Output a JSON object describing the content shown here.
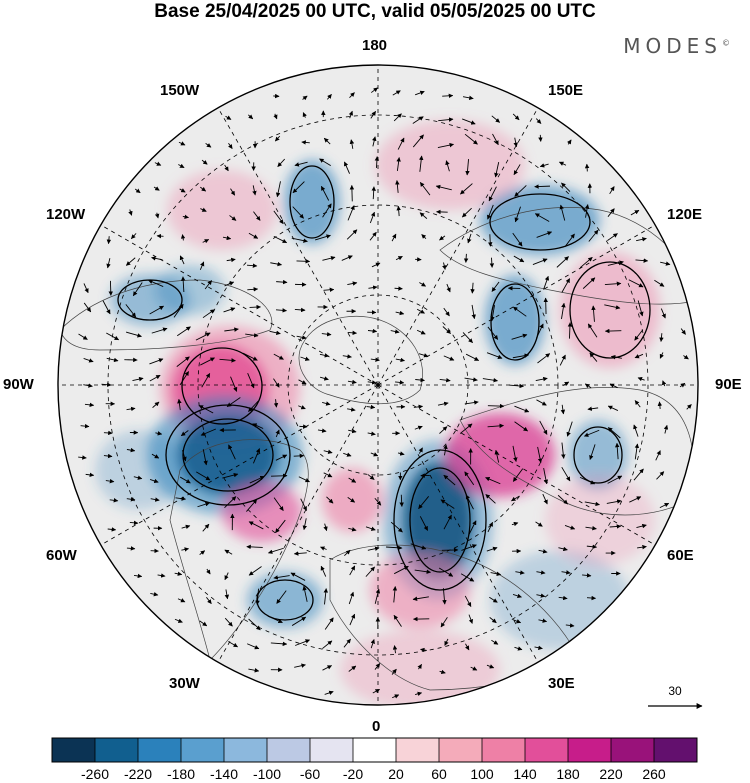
{
  "title": "Base 25/04/2025 00 UTC, valid 05/05/2025 00 UTC",
  "brand": "MODES",
  "brand_mark": "©",
  "meridian_labels": {
    "m180": "180",
    "m150e": "150E",
    "m120e": "120E",
    "m90e": "90E",
    "m60e": "60E",
    "m30e": "30E",
    "m0": "0",
    "m30w": "30W",
    "m60w": "60W",
    "m90w": "90W",
    "m120w": "120W",
    "m150w": "150W"
  },
  "vector_scale": {
    "label": "30"
  },
  "colorbar": {
    "colors": [
      "#0b3354",
      "#115f8f",
      "#2b81bb",
      "#5a9fcf",
      "#8cb8dd",
      "#bcc9e4",
      "#e5e4f1",
      "#ffffff",
      "#f8d3d8",
      "#f4abba",
      "#ee80a6",
      "#e24f9a",
      "#c71d8a",
      "#99127a",
      "#63106e"
    ],
    "labels": [
      "-260",
      "-220",
      "-180",
      "-140",
      "-100",
      "-60",
      "-20",
      "20",
      "60",
      "100",
      "140",
      "180",
      "220",
      "260"
    ]
  },
  "map_colors": {
    "positive": "#ee80a6",
    "negative": "#2b81bb",
    "coast": "#444444",
    "ocean": "#ebebeb"
  }
}
